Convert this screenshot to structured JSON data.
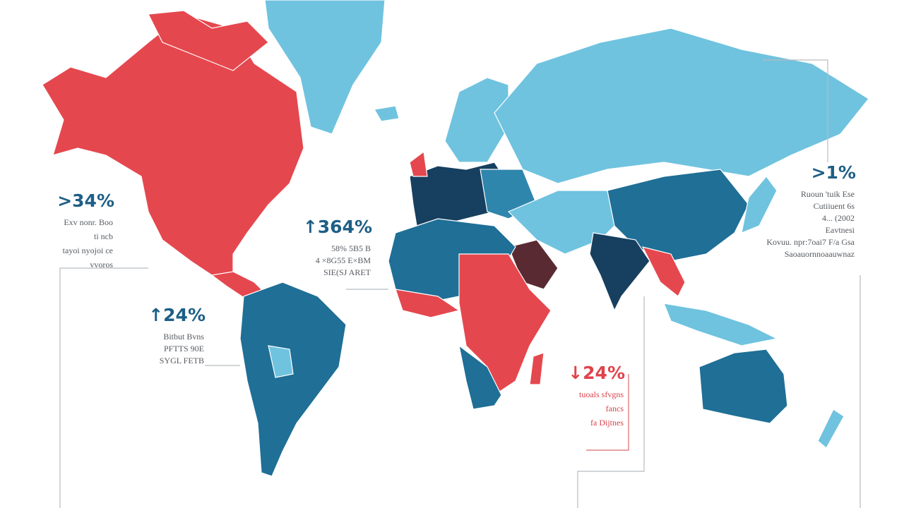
{
  "callouts": [
    {
      "value": ">34%",
      "lines": [
        "Exv nonr. Boo",
        "ti ncb",
        "tayoi nyojoi ce",
        "vvoros"
      ]
    },
    {
      "value": "↑364%",
      "lines": [
        "58% 5B5 B",
        "4 ×8G55 E×BM",
        "SIE(SJ ARET"
      ]
    },
    {
      "value": "↑24%",
      "lines": [
        "Bitbut Bvns",
        "PFTTS 90E",
        "SYGL FETB"
      ]
    },
    {
      "value": "↓24%",
      "lines": [
        "tuoals sfvgns",
        "fancs",
        "fa Dijtnes"
      ]
    },
    {
      "value": ">1%",
      "lines": [
        "Ruoun 'tuik Ese",
        "Cutiiuent 6s",
        "4... (2002",
        "Eavtnesi",
        "Kovuu. npr:7oai7 F/a Gsa",
        "Saoauornnoaauwnaz"
      ]
    }
  ]
}
